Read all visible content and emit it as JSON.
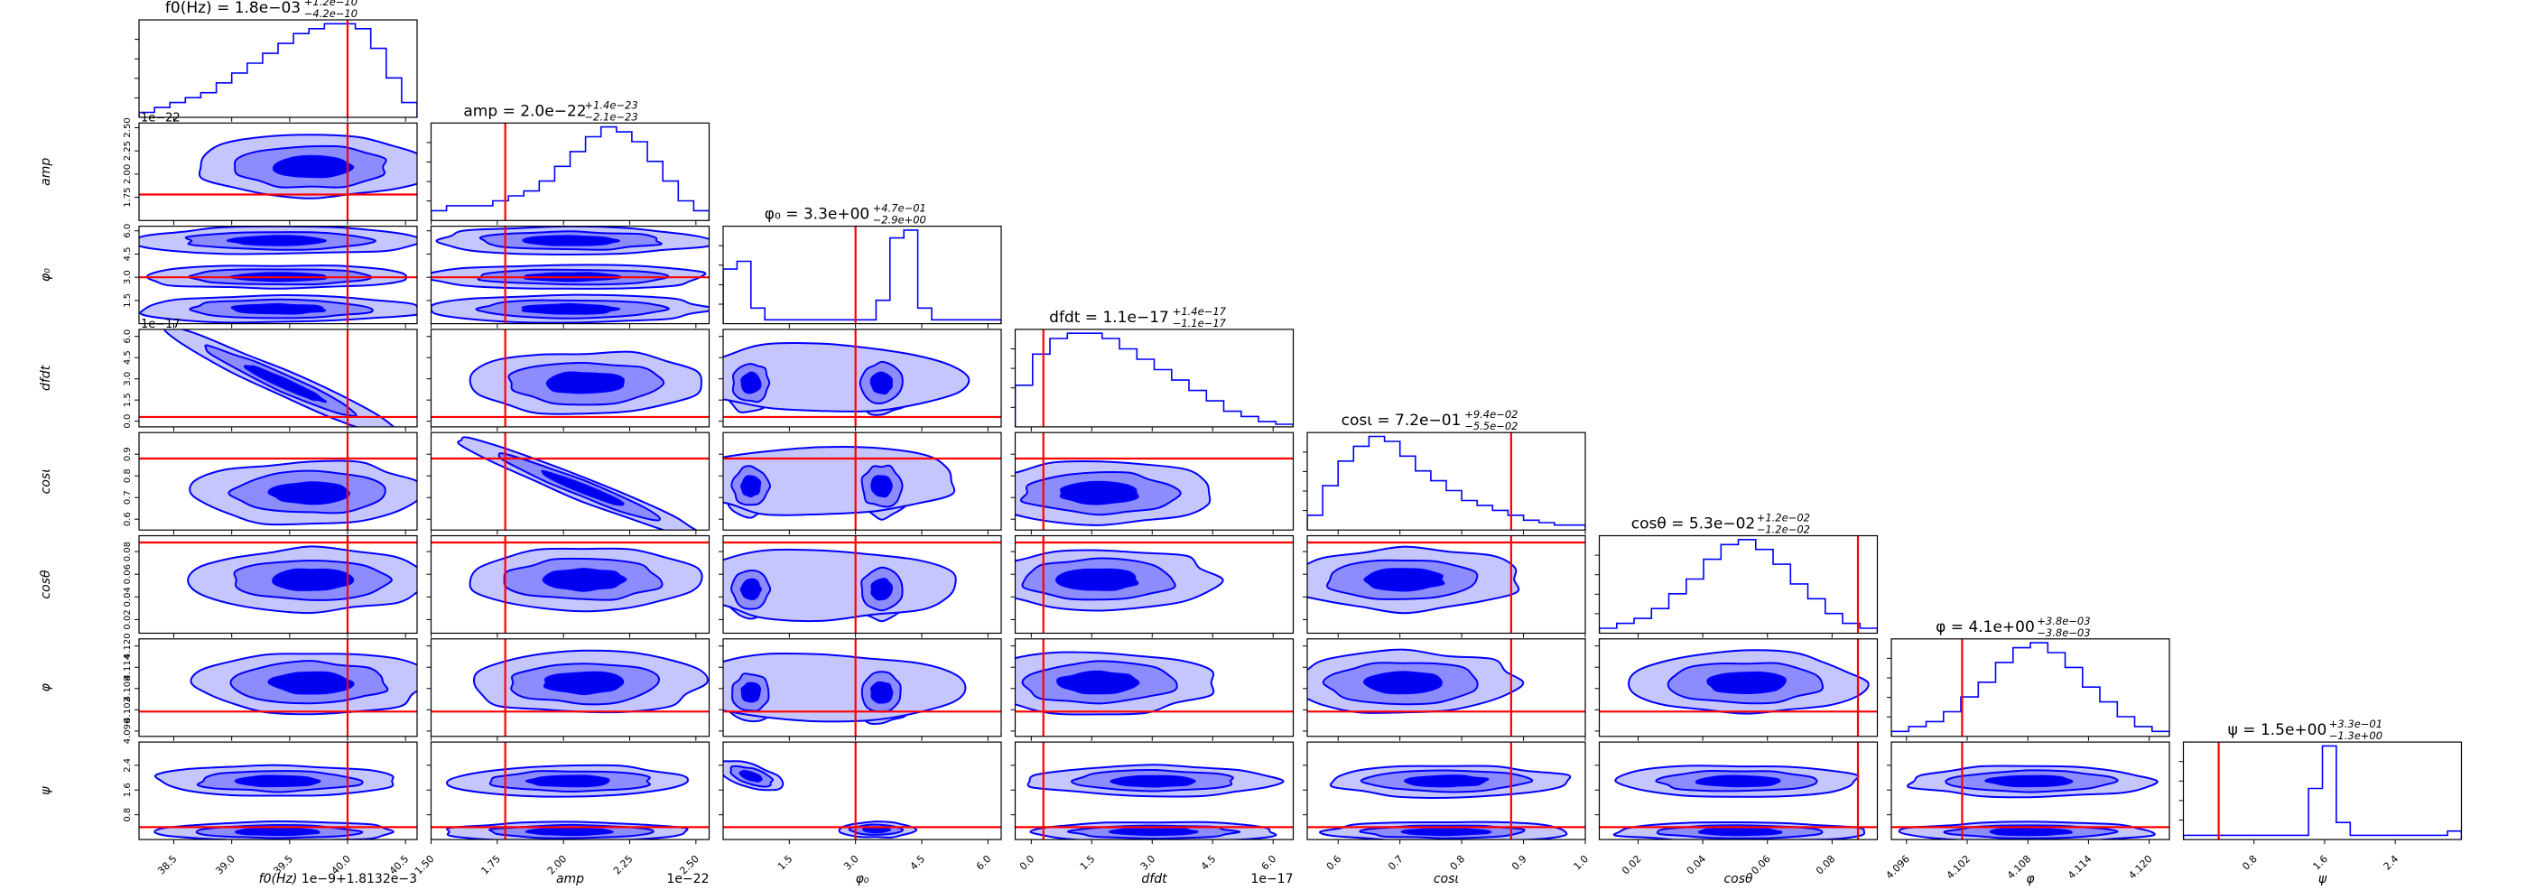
{
  "chart_data": {
    "type": "corner",
    "grid": false,
    "colors": {
      "contour_line": "#0000ff",
      "fill_light": "#c6c6ff",
      "fill_mid": "#8c8cff",
      "fill_dark": "#0000ee",
      "truth_line": "#ff0000"
    },
    "params": [
      {
        "key": "f0",
        "label": "f0(Hz)",
        "title": "f0(Hz) = 1.8e−03",
        "err_plus": "+1.2e−10",
        "err_minus": "−4.2e−10",
        "range": [
          38.2,
          40.6
        ],
        "ticks": [
          "38.5",
          "39.0",
          "39.5",
          "40.0",
          "40.5"
        ],
        "tick_values": [
          38.5,
          39.0,
          39.5,
          40.0,
          40.5
        ],
        "offset": "1e−9+1.8132e−3",
        "truth": 40.0,
        "hist": [
          1,
          2,
          3,
          4,
          5,
          7,
          9,
          11,
          13,
          15,
          17,
          18,
          19,
          19,
          18,
          14,
          8,
          3
        ]
      },
      {
        "key": "amp",
        "label": "amp",
        "title": "amp = 2.0e−22",
        "err_plus": "+1.4e−23",
        "err_minus": "−2.1e−23",
        "range": [
          1.5,
          2.55
        ],
        "ticks": [
          "1.50",
          "1.75",
          "2.00",
          "2.25",
          "2.50"
        ],
        "tick_values": [
          1.5,
          1.75,
          2.0,
          2.25,
          2.5
        ],
        "offset": "1e−22",
        "truth": 1.78,
        "hist": [
          2,
          3,
          3,
          3,
          4,
          5,
          6,
          8,
          11,
          14,
          17,
          19,
          18,
          16,
          12,
          8,
          4,
          2
        ]
      },
      {
        "key": "phi0",
        "label": "φ₀",
        "title": "φ₀ = 3.3e+00",
        "err_plus": "+4.7e−01",
        "err_minus": "−2.9e+00",
        "range": [
          0.0,
          6.3
        ],
        "ticks": [
          "1.5",
          "3.0",
          "4.5",
          "6.0"
        ],
        "tick_values": [
          1.5,
          3.0,
          4.5,
          6.0
        ],
        "offset": "",
        "truth": 3.0,
        "hist": [
          14,
          16,
          4,
          1,
          1,
          1,
          1,
          1,
          1,
          1,
          1,
          6,
          22,
          24,
          4,
          1,
          1,
          1,
          1,
          1
        ]
      },
      {
        "key": "dfdt",
        "label": "dfdt",
        "title": "dfdt = 1.1e−17",
        "err_plus": "+1.4e−17",
        "err_minus": "−1.1e−17",
        "range": [
          -0.4,
          6.5
        ],
        "ticks": [
          "0.0",
          "1.5",
          "3.0",
          "4.5",
          "6.0"
        ],
        "tick_values": [
          0.0,
          1.5,
          3.0,
          4.5,
          6.0
        ],
        "offset": "1e−17",
        "truth": 0.3,
        "hist": [
          8,
          14,
          17,
          18,
          18,
          17,
          15,
          13,
          11,
          9,
          7,
          5,
          3,
          2,
          1,
          0.5
        ]
      },
      {
        "key": "cosi",
        "label": "cosι",
        "title": "cosι = 7.2e−01",
        "err_plus": "+9.4e−02",
        "err_minus": "−5.5e−02",
        "range": [
          0.55,
          1.0
        ],
        "ticks": [
          "0.6",
          "0.7",
          "0.8",
          "0.9",
          "1.0"
        ],
        "tick_values": [
          0.6,
          0.7,
          0.8,
          0.9,
          1.0
        ],
        "offset": "",
        "truth": 0.88,
        "hist": [
          3,
          9,
          14,
          17,
          19,
          18,
          15,
          12,
          10,
          8,
          6,
          5,
          4,
          3,
          2,
          1.5,
          1,
          1
        ]
      },
      {
        "key": "costheta",
        "label": "cosθ",
        "title": "cosθ = 5.3e−02",
        "err_plus": "+1.2e−02",
        "err_minus": "−1.2e−02",
        "range": [
          0.008,
          0.094
        ],
        "ticks": [
          "0.02",
          "0.04",
          "0.06",
          "0.08"
        ],
        "tick_values": [
          0.02,
          0.04,
          0.06,
          0.08
        ],
        "offset": "",
        "truth": 0.088,
        "hist": [
          1,
          2,
          3,
          5,
          8,
          11,
          15,
          18,
          19,
          17,
          14,
          10,
          7,
          4,
          2,
          1
        ]
      },
      {
        "key": "varphi",
        "label": "φ",
        "title": "φ = 4.1e+00",
        "err_plus": "+3.8e−03",
        "err_minus": "−3.8e−03",
        "range": [
          4.0945,
          4.122
        ],
        "ticks": [
          "4.096",
          "4.102",
          "4.108",
          "4.114",
          "4.120"
        ],
        "tick_values": [
          4.096,
          4.102,
          4.108,
          4.114,
          4.12
        ],
        "offset": "",
        "truth": 4.1015,
        "hist": [
          1,
          2,
          3,
          5,
          8,
          11,
          15,
          18,
          19,
          17,
          14,
          10,
          7,
          4,
          2,
          1
        ]
      },
      {
        "key": "psi",
        "label": "ψ",
        "title": "ψ = 1.5e+00",
        "err_plus": "+3.3e−01",
        "err_minus": "−1.3e+00",
        "range": [
          0.0,
          3.15
        ],
        "ticks": [
          "0.8",
          "1.6",
          "2.4"
        ],
        "tick_values": [
          0.8,
          1.6,
          2.4
        ],
        "offset": "",
        "truth": 0.4,
        "hist": [
          1,
          1,
          1,
          1,
          1,
          1,
          1,
          1,
          1,
          12,
          22,
          4,
          1,
          1,
          1,
          1,
          1,
          1,
          1,
          2
        ]
      }
    ]
  }
}
